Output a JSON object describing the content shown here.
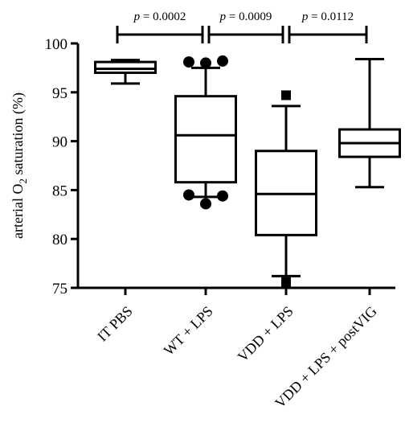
{
  "chart_data": {
    "type": "box",
    "ylabel": "arterial O2 saturation (%)",
    "ylabel_main": "arterial O",
    "ylabel_sub": "2",
    "ylabel_tail": " saturation (%)",
    "ylim": [
      75,
      100
    ],
    "yticks": [
      75,
      80,
      85,
      90,
      95,
      100
    ],
    "grid": false,
    "categories": [
      "IT PBS",
      "WT + LPS",
      "VDD + LPS",
      "VDD + LPS + postVIG"
    ],
    "boxes": [
      {
        "category": "IT PBS",
        "whisker_low": 95.9,
        "q1": 97.0,
        "median": 97.4,
        "q3": 98.1,
        "whisker_high": 98.3,
        "outliers": []
      },
      {
        "category": "WT + LPS",
        "whisker_low": 84.3,
        "q1": 85.8,
        "median": 90.6,
        "q3": 94.6,
        "whisker_high": 97.5,
        "outliers": [
          98.1,
          98.0,
          98.2,
          84.5,
          83.6,
          84.4
        ],
        "outlier_marker": "circle"
      },
      {
        "category": "VDD + LPS",
        "whisker_low": 76.2,
        "q1": 80.4,
        "median": 84.6,
        "q3": 89.0,
        "whisker_high": 93.6,
        "outliers": [
          94.7,
          75.6
        ],
        "outlier_marker": "square"
      },
      {
        "category": "VDD + LPS + postVIG",
        "whisker_low": 85.3,
        "q1": 88.4,
        "median": 89.8,
        "q3": 91.2,
        "whisker_high": 98.4,
        "outliers": []
      }
    ],
    "annotations": [
      {
        "from": "IT PBS",
        "to": "WT + LPS",
        "p_label": "p",
        "p_value": " = 0.0002"
      },
      {
        "from": "WT + LPS",
        "to": "VDD + LPS",
        "p_label": "p",
        "p_value": " = 0.0009"
      },
      {
        "from": "VDD + LPS",
        "to": "VDD + LPS + postVIG",
        "p_label": "p",
        "p_value": " = 0.0112"
      }
    ]
  }
}
